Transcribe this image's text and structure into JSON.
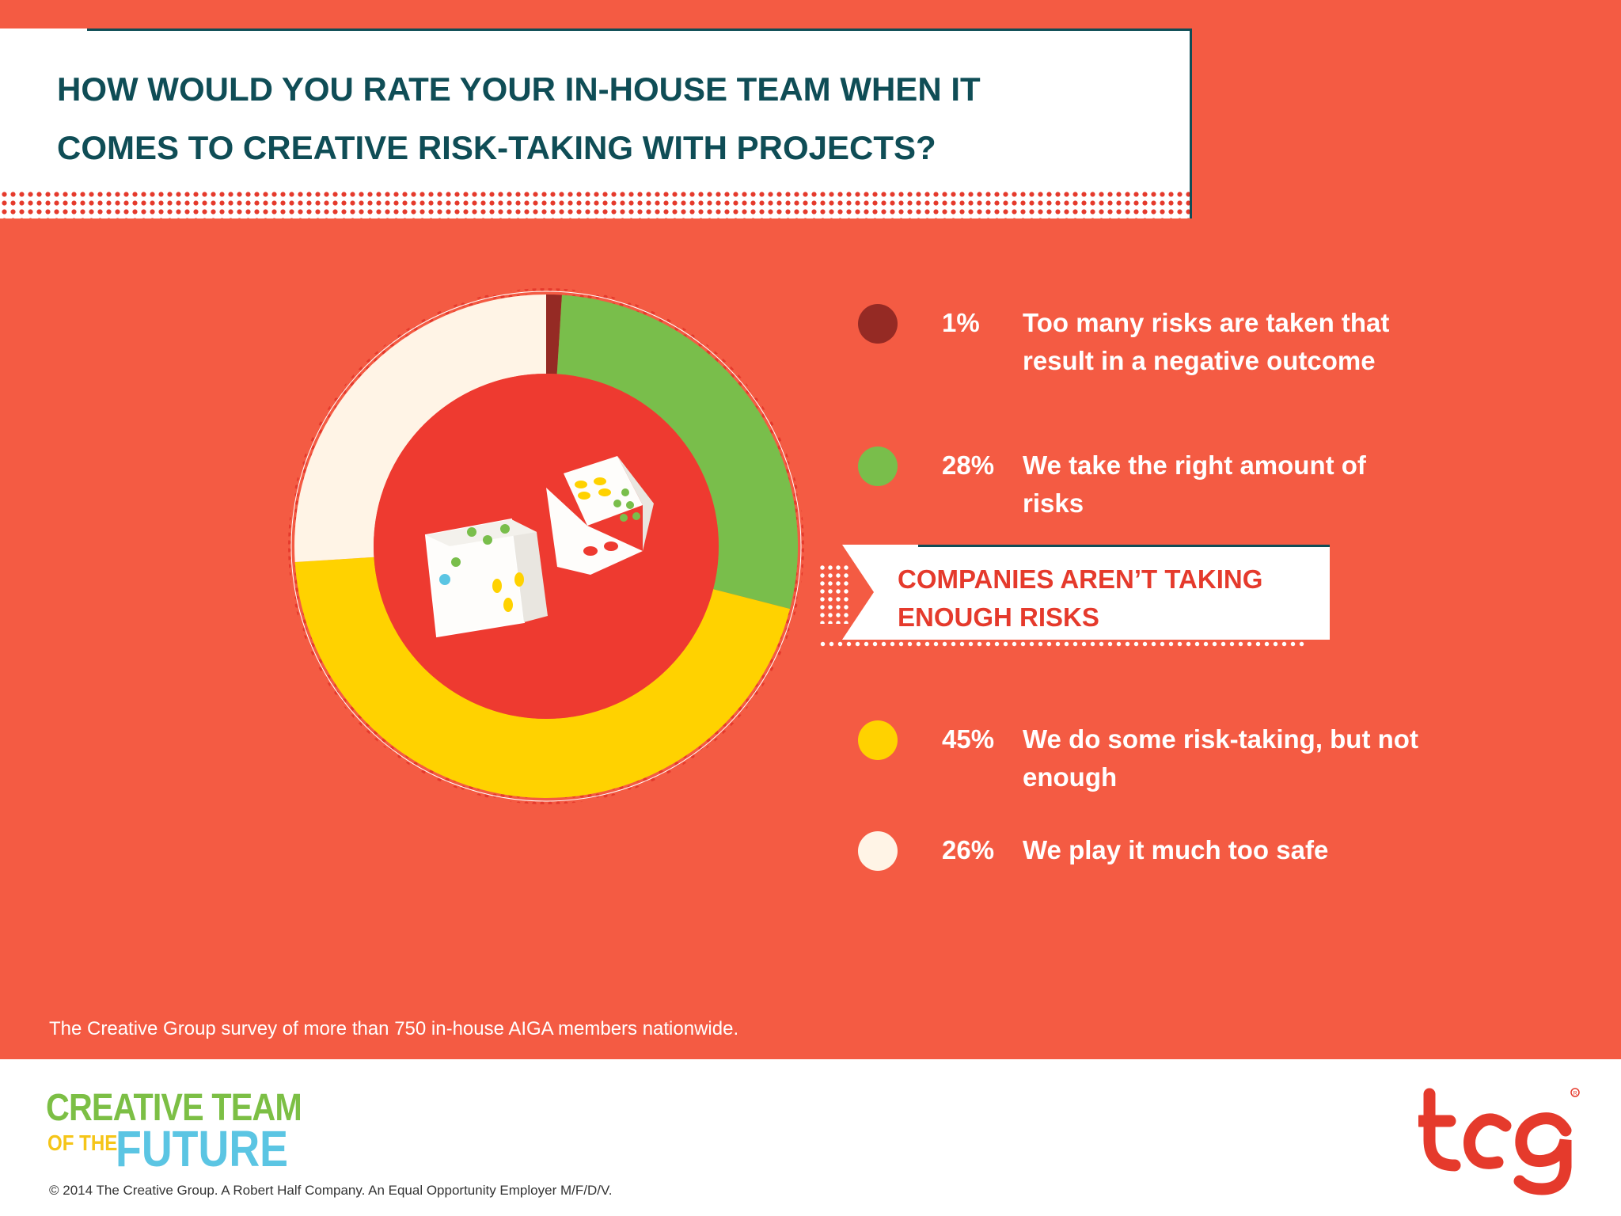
{
  "title": "HOW WOULD YOU RATE YOUR IN-HOUSE TEAM WHEN IT COMES TO CREATIVE RISK-TAKING WITH PROJECTS?",
  "chart_data": {
    "type": "pie",
    "donut": true,
    "title": "HOW WOULD YOU RATE YOUR IN-HOUSE TEAM WHEN IT COMES TO CREATIVE RISK-TAKING WITH PROJECTS?",
    "slices": [
      {
        "label": "Too many risks are taken that result in a negative outcome",
        "value": 1,
        "pct_label": "1%",
        "color": "#952a24"
      },
      {
        "label": "We take the right amount of risks",
        "value": 28,
        "pct_label": "28%",
        "color": "#79be4b"
      },
      {
        "label": "We do some risk-taking, but not enough",
        "value": 45,
        "pct_label": "45%",
        "color": "#ffd200"
      },
      {
        "label": "We play it much too safe",
        "value": 26,
        "pct_label": "26%",
        "color": "#fff4e6"
      }
    ],
    "center_color": "#ee3a30",
    "legend_position": "right"
  },
  "callout": {
    "text": "COMPANIES AREN’T TAKING ENOUGH RISKS"
  },
  "source_note": "The Creative Group survey of more than 750 in-house AIGA members nationwide.",
  "footer": {
    "brand_line1": "CREATIVE TEAM",
    "brand_line2a": "OF THE",
    "brand_line2b": "FUTURE",
    "copyright": "© 2014 The Creative Group. A Robert Half Company. An Equal Opportunity Employer M/F/D/V.",
    "tcg_logo": "tcg",
    "tcg_color": "#e53a2c"
  },
  "colors": {
    "background": "#f45b43",
    "title_text": "#0f4d56",
    "callout_text": "#e53a2c"
  }
}
